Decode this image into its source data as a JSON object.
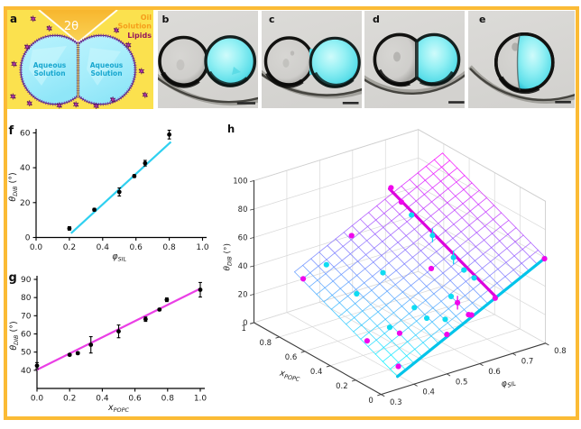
{
  "figure": {
    "frame_color": "#FBBB35",
    "background": "#FFFFFF"
  },
  "panel_a": {
    "label": "a",
    "angle_label": "2θ",
    "droplet_text_line1": "Aqueous",
    "droplet_text_line2": "Solution",
    "legend_oil_line1": "Oil",
    "legend_oil_line2": "Solution",
    "legend_lipids": "Lipids",
    "colors": {
      "background": "#FBE14E",
      "wedge_top": "#F6B32A",
      "wedge_bottom": "#FAD24F",
      "droplet_fill": "#A6EDFB",
      "droplet_highlight": "#CDF7FE",
      "membrane": "#44217F",
      "membrane_hairs": "#7A2AA0",
      "text_aqueous": "#18A7CF",
      "text_oil": "#F59E1B",
      "text_lipids": "#97175C",
      "micelle": "#7A1C86"
    }
  },
  "panel_b": {
    "label": "b"
  },
  "panel_c": {
    "label": "c"
  },
  "panel_d": {
    "label": "d"
  },
  "panel_e": {
    "label": "e"
  },
  "chart_data": [
    {
      "id": "f",
      "type": "scatter",
      "panel_label": "f",
      "xlabel": {
        "main": "φ",
        "sub": "SIL"
      },
      "ylabel": {
        "main": "θ",
        "sub": "DIB",
        "unit": " (°)"
      },
      "xlim": [
        0,
        1
      ],
      "ylim": [
        0,
        60
      ],
      "xticks": [
        0,
        0.2,
        0.4,
        0.6,
        0.8,
        1
      ],
      "xtick_labels": [
        "0.0",
        "0.2",
        "0.4",
        "0.6",
        "0.8",
        "1.0"
      ],
      "yticks": [
        0,
        20,
        40,
        60
      ],
      "ytick_labels": [
        "0",
        "20",
        "40",
        "60"
      ],
      "fit_line": {
        "color": "#2FD0F0",
        "x": [
          0.21,
          0.81
        ],
        "y": [
          2.4,
          54.8
        ]
      },
      "points": [
        {
          "x": 0.2,
          "y": 5.2,
          "err": 1.0
        },
        {
          "x": 0.35,
          "y": 15.9,
          "err": 0.8
        },
        {
          "x": 0.5,
          "y": 26.1,
          "err": 2.3
        },
        {
          "x": 0.59,
          "y": 35.2,
          "err": 0.8
        },
        {
          "x": 0.655,
          "y": 42.6,
          "err": 1.6
        },
        {
          "x": 0.8,
          "y": 59.0,
          "err": 2.5
        }
      ]
    },
    {
      "id": "g",
      "type": "scatter",
      "panel_label": "g",
      "xlabel": {
        "main": "x",
        "sub": "POPC"
      },
      "ylabel": {
        "main": "θ",
        "sub": "DIB",
        "unit": " (°)"
      },
      "xlim": [
        0,
        1
      ],
      "ylim": [
        30,
        90
      ],
      "xticks": [
        0,
        0.2,
        0.4,
        0.6,
        0.8,
        1
      ],
      "xtick_labels": [
        "0.0",
        "0.2",
        "0.4",
        "0.6",
        "0.8",
        "1.0"
      ],
      "yticks": [
        40,
        50,
        60,
        70,
        80,
        90
      ],
      "ytick_labels": [
        "40",
        "50",
        "60",
        "70",
        "80",
        "90"
      ],
      "fit_line": {
        "color": "#EA3FE5",
        "x": [
          0,
          1
        ],
        "y": [
          40.3,
          84.9
        ]
      },
      "points": [
        {
          "x": 0.0,
          "y": 42.5,
          "err": 1.7
        },
        {
          "x": 0.2,
          "y": 48.5,
          "err": 0.6
        },
        {
          "x": 0.25,
          "y": 49.4,
          "err": 0.6
        },
        {
          "x": 0.33,
          "y": 54.0,
          "err": 4.5
        },
        {
          "x": 0.5,
          "y": 61.4,
          "err": 3.5
        },
        {
          "x": 0.665,
          "y": 68.1,
          "err": 1.2
        },
        {
          "x": 0.75,
          "y": 73.4,
          "err": 0.6
        },
        {
          "x": 0.795,
          "y": 78.8,
          "err": 1.0
        },
        {
          "x": 1.0,
          "y": 84.3,
          "err": 4.0
        }
      ]
    },
    {
      "id": "h",
      "type": "surface3d",
      "panel_label": "h",
      "xlabel": {
        "main": "x",
        "sub": "POPC"
      },
      "ylabel": {
        "main": "φ",
        "sub": "SIL"
      },
      "zlabel": {
        "main": "θ",
        "sub": "DIB",
        "unit": " (°)"
      },
      "xlim": [
        0,
        1
      ],
      "ylim": [
        0.3,
        0.8
      ],
      "zlim": [
        0,
        100
      ],
      "xticks": [
        1,
        0.8,
        0.6,
        0.4,
        0.2,
        0
      ],
      "xtick_labels": [
        "1",
        "0.8",
        "0.6",
        "0.4",
        "0.2",
        "0"
      ],
      "yticks": [
        0.3,
        0.4,
        0.5,
        0.6,
        0.7,
        0.8
      ],
      "ytick_labels": [
        "0.3",
        "0.4",
        "0.5",
        "0.6",
        "0.7",
        "0.8"
      ],
      "zticks": [
        0,
        20,
        40,
        60,
        80,
        100
      ],
      "ztick_labels": [
        "0",
        "20",
        "40",
        "60",
        "80",
        "100"
      ],
      "surface": {
        "x_range": [
          0,
          0.81
        ],
        "y_range": [
          0.35,
          0.8
        ],
        "plane_coeff": {
          "intercept": -30.9,
          "x": 40.4,
          "y": 114.0
        },
        "x_segments": 14,
        "y_segments": 18,
        "colormap": [
          "#00FFFF",
          "#FF00FF"
        ]
      },
      "highlight_lines": [
        {
          "color": "#00C4EA",
          "fixed": "x",
          "value": 0.0,
          "range": [
            0.35,
            0.8
          ]
        },
        {
          "color": "#DD00DC",
          "fixed": "y",
          "value": 0.65,
          "range": [
            0.0,
            0.84
          ]
        }
      ],
      "points": [
        {
          "x": 0.84,
          "y": 0.655,
          "z": 77.5,
          "color": "#F007EC"
        },
        {
          "x": 0.74,
          "y": 0.648,
          "z": 73.0,
          "color": "#F007EC"
        },
        {
          "x": 0.77,
          "y": 0.508,
          "z": 57.9,
          "color": "#F007EC"
        },
        {
          "x": 0.75,
          "y": 0.353,
          "z": 39.7,
          "color": "#F007EC"
        },
        {
          "x": 0.35,
          "y": 0.588,
          "z": 50.2,
          "color": "#F007EC"
        },
        {
          "x": 0.26,
          "y": 0.358,
          "z": 20.4,
          "color": "#F007EC"
        },
        {
          "x": 0.18,
          "y": 0.426,
          "z": 24.9,
          "color": "#F007EC"
        },
        {
          "x": 0.04,
          "y": 0.368,
          "z": 12.8,
          "color": "#F007EC"
        },
        {
          "x": 0.01,
          "y": 0.504,
          "z": 27.0,
          "color": "#F007EC"
        },
        {
          "x": 0.11,
          "y": 0.575,
          "z": 39.2,
          "color": "#F007EC",
          "stem": 4.5
        },
        {
          "x": 0.02,
          "y": 0.574,
          "z": 35.4,
          "color": "#F007EC"
        },
        {
          "x": 0.01,
          "y": 0.579,
          "z": 35.3,
          "color": "#F007EC"
        },
        {
          "x": 0.0,
          "y": 0.647,
          "z": 42.8,
          "color": "#F007EC"
        },
        {
          "x": 0.0,
          "y": 0.797,
          "z": 59.7,
          "color": "#F007EC"
        },
        {
          "x": 0.65,
          "y": 0.644,
          "z": 68.7,
          "color": "#0FDCF2"
        },
        {
          "x": 0.49,
          "y": 0.646,
          "z": 62.3,
          "color": "#0FDCF2",
          "stem": 4.5
        },
        {
          "x": 0.32,
          "y": 0.644,
          "z": 55.5,
          "color": "#0FDCF2",
          "stem": 4.5
        },
        {
          "x": 0.23,
          "y": 0.641,
          "z": 51.4,
          "color": "#0FDCF2"
        },
        {
          "x": 0.16,
          "y": 0.645,
          "z": 49.1,
          "color": "#0FDCF2"
        },
        {
          "x": 0.5,
          "y": 0.499,
          "z": 46.1,
          "color": "#0FDCF2"
        },
        {
          "x": 0.73,
          "y": 0.416,
          "z": 46.1,
          "color": "#0FDCF2"
        },
        {
          "x": 0.5,
          "y": 0.419,
          "z": 37.0,
          "color": "#0FDCF2"
        },
        {
          "x": 0.24,
          "y": 0.494,
          "z": 35.0,
          "color": "#0FDCF2"
        },
        {
          "x": 0.15,
          "y": 0.497,
          "z": 31.9,
          "color": "#0FDCF2"
        },
        {
          "x": 0.08,
          "y": 0.526,
          "z": 32.5,
          "color": "#0FDCF2"
        },
        {
          "x": 0.16,
          "y": 0.575,
          "z": 41.1,
          "color": "#0FDCF2"
        },
        {
          "x": 0.24,
          "y": 0.419,
          "z": 26.5,
          "color": "#0FDCF2"
        }
      ]
    }
  ]
}
